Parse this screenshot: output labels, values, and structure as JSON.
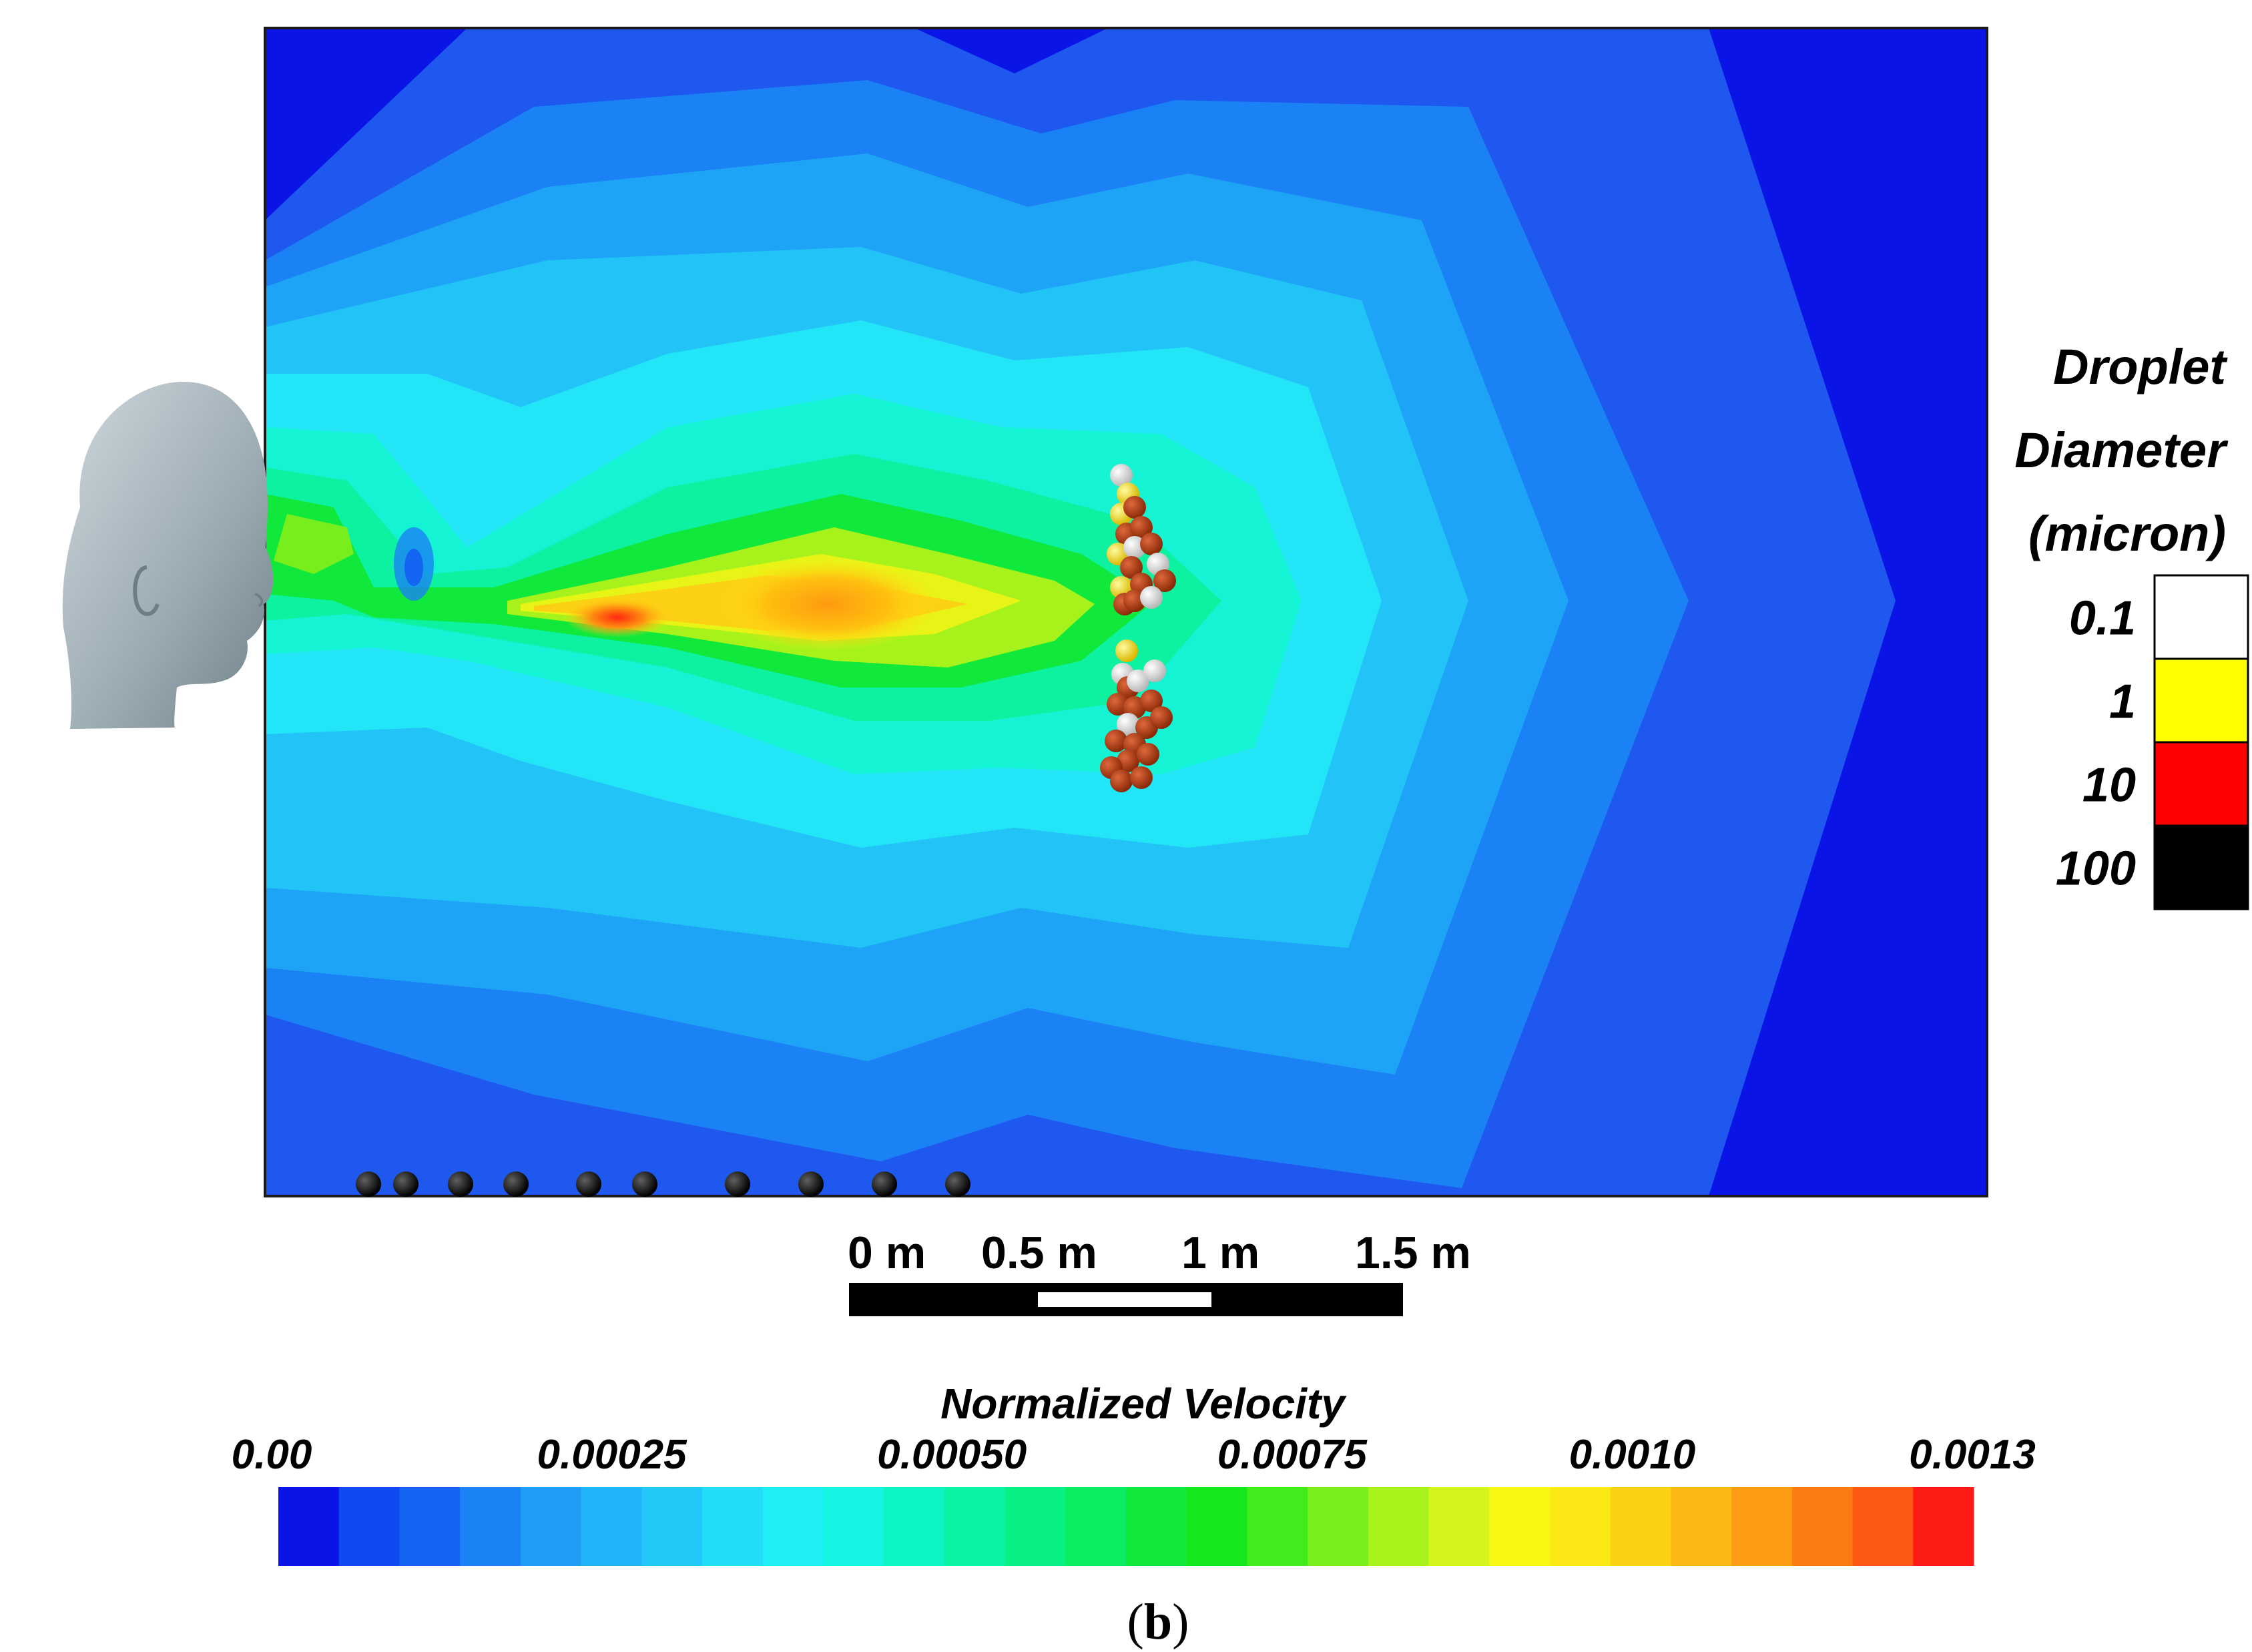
{
  "panel_label": {
    "open": "(",
    "letter": "b",
    "close": ")"
  },
  "droplet_legend": {
    "title_lines": [
      "Droplet",
      "Diameter",
      "(micron)"
    ],
    "items": [
      {
        "label": "0.1",
        "color": "#ffffff"
      },
      {
        "label": "1",
        "color": "#ffff00"
      },
      {
        "label": "10",
        "color": "#ff0000"
      },
      {
        "label": "100",
        "color": "#000000"
      }
    ]
  },
  "scale_bar": {
    "labels": [
      "0 m",
      "0.5 m",
      "1 m",
      "1.5 m"
    ]
  },
  "colorbar": {
    "title": "Normalized Velocity",
    "tick_labels": [
      "0.00",
      "0.00025",
      "0.00050",
      "0.00075",
      "0.0010",
      "0.0013"
    ],
    "colors": [
      "#0a14e6",
      "#0f4af0",
      "#1466f2",
      "#1a82f4",
      "#1e9cf6",
      "#22b4f8",
      "#22c8f8",
      "#22dcf8",
      "#1eeef6",
      "#14f4e2",
      "#0cf4c4",
      "#08f4a4",
      "#08f084",
      "#0cec60",
      "#10e83c",
      "#14e81c",
      "#40ec1c",
      "#78ef1c",
      "#a8f21c",
      "#d4f41c",
      "#f8f814",
      "#fce814",
      "#fcd014",
      "#fcb814",
      "#fc9c14",
      "#fc7c14",
      "#fc5814",
      "#fc1c14"
    ]
  },
  "droplets": {
    "floor_count": 10
  }
}
